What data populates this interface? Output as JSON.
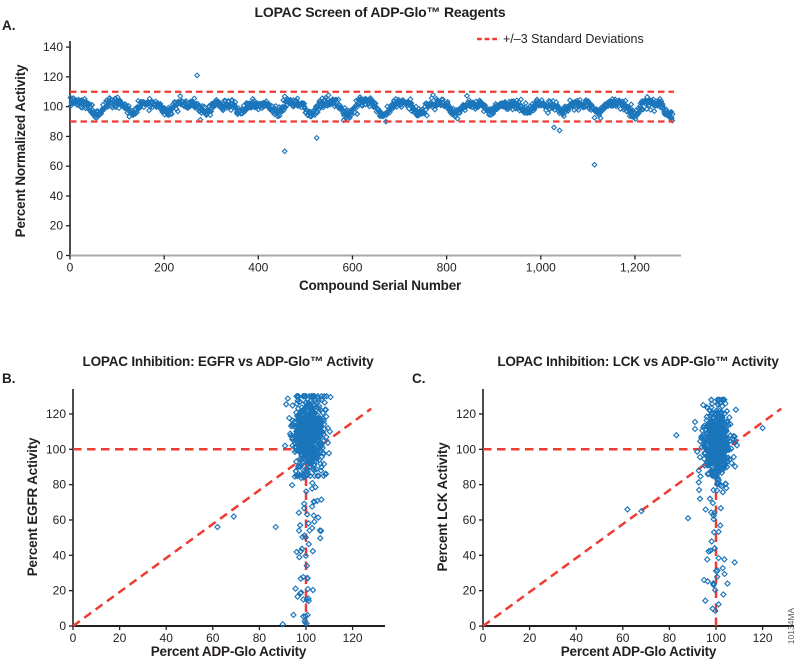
{
  "figure": {
    "watermark": "10134MA",
    "colors": {
      "point_blue": "#1B75BB",
      "dash_red": "#EE3B33",
      "axis_dark": "#231F20",
      "axis_gray": "#A7A9AC",
      "tick_text": "#231F20",
      "background": "#FFFFFF"
    }
  },
  "chart_data": [
    {
      "id": "A",
      "type": "scatter",
      "panel_label": "A.",
      "title": "LOPAC Screen of ADP-Glo™ Reagents",
      "xlabel": "Compound Serial Number",
      "ylabel": "Percent Normalized Activity",
      "xlim": [
        0,
        1300
      ],
      "ylim": [
        0,
        145
      ],
      "xticks": [
        0,
        200,
        400,
        600,
        800,
        1000,
        1200
      ],
      "xtick_labels": [
        "0",
        "200",
        "400",
        "600",
        "800",
        "1,000",
        "1,200"
      ],
      "yticks": [
        0,
        20,
        40,
        60,
        80,
        100,
        120,
        140
      ],
      "grid": false,
      "legend": {
        "label": "+/–3 Standard Deviations",
        "position": "top-right",
        "marker": "red-dashed-line"
      },
      "sd_lines": {
        "upper": 110,
        "lower": 90,
        "x_extent": [
          0,
          1283
        ]
      },
      "band_synthesis": {
        "description": "≈1280 compounds in a periodic wavy band centered on 100% activity, mostly within 90–110",
        "n": 1280,
        "baseline": 100,
        "wave_amplitude": 4.0,
        "wave_period": 76,
        "ripple_amplitude": 1.3,
        "noise_sd": 1.6,
        "value_range": [
          88,
          111
        ],
        "seed": 7
      },
      "outliers": [
        [
          270,
          121
        ],
        [
          456,
          70
        ],
        [
          524,
          79
        ],
        [
          1028,
          86
        ],
        [
          1040,
          84
        ],
        [
          1114,
          61
        ]
      ]
    },
    {
      "id": "B",
      "type": "scatter",
      "panel_label": "B.",
      "title": "LOPAC Inhibition: EGFR vs ADP-Glo™ Activity",
      "xlabel": "Percent ADP-Glo Activity",
      "ylabel": "Percent EGFR Activity",
      "xlim": [
        0,
        133
      ],
      "ylim": [
        0,
        134
      ],
      "xticks": [
        0,
        20,
        40,
        60,
        80,
        100,
        120
      ],
      "yticks": [
        0,
        20,
        40,
        60,
        80,
        100,
        120
      ],
      "grid": false,
      "ref_lines": {
        "horizontal": {
          "y": 100,
          "x_extent": [
            0,
            97
          ]
        },
        "vertical": {
          "x": 100,
          "y_extent": [
            0,
            93
          ]
        },
        "diagonal": {
          "from": [
            0,
            0
          ],
          "to": [
            128,
            123
          ]
        }
      },
      "cluster_synthesis": {
        "description": "dense vertical blob of compounds with unchanged ADP-Glo signal (~100%) spanning EGFR activity ~85–130",
        "n": 520,
        "x_mean": 101,
        "x_sd": 3.3,
        "y_mean": 109,
        "y_sd": 11.5,
        "x_range": [
          91.5,
          110.5
        ],
        "y_range": [
          85,
          130
        ],
        "seed": 11
      },
      "tail_synthesis": {
        "n": 60,
        "x_mean": 100,
        "x_sd": 3.0,
        "y_range": [
          1,
          85
        ],
        "seed": 23
      },
      "outliers": [
        [
          62,
          56
        ],
        [
          69,
          62
        ],
        [
          87,
          56
        ],
        [
          94,
          114
        ],
        [
          91,
          102
        ],
        [
          90,
          1
        ]
      ]
    },
    {
      "id": "C",
      "type": "scatter",
      "panel_label": "C.",
      "title": "LOPAC Inhibition: LCK vs ADP-Glo™ Activity",
      "xlabel": "Percent ADP-Glo Activity",
      "ylabel": "Percent LCK Activity",
      "xlim": [
        0,
        133
      ],
      "ylim": [
        0,
        134
      ],
      "xticks": [
        0,
        20,
        40,
        60,
        80,
        100,
        120
      ],
      "yticks": [
        0,
        20,
        40,
        60,
        80,
        100,
        120
      ],
      "grid": false,
      "ref_lines": {
        "horizontal": {
          "y": 100,
          "x_extent": [
            0,
            97
          ]
        },
        "vertical": {
          "x": 100,
          "y_extent": [
            0,
            93
          ]
        },
        "diagonal": {
          "from": [
            0,
            0
          ],
          "to": [
            128,
            123
          ]
        }
      },
      "cluster_synthesis": {
        "description": "dense vertical blob at ADP-Glo ~100% spanning LCK activity ~72–128",
        "n": 520,
        "x_mean": 100.5,
        "x_sd": 3.0,
        "y_mean": 103,
        "y_sd": 11,
        "x_range": [
          91,
          109
        ],
        "y_range": [
          72,
          128
        ],
        "seed": 31
      },
      "tail_synthesis": {
        "n": 34,
        "x_mean": 99.5,
        "x_sd": 2.4,
        "y_range": [
          6,
          72
        ],
        "seed": 41
      },
      "outliers": [
        [
          62,
          66
        ],
        [
          68,
          65
        ],
        [
          88,
          61
        ],
        [
          83,
          108
        ],
        [
          120,
          112
        ],
        [
          108,
          36
        ]
      ]
    }
  ]
}
